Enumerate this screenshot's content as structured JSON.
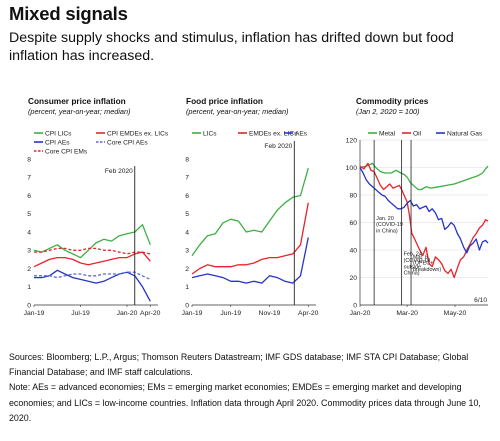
{
  "title": "Mixed signals",
  "subtitle": "Despite supply shocks and stimulus, inflation has drifted down but food inflation has increased.",
  "footer": {
    "sources": "Sources: Bloomberg; L.P., Argus; Thomson Reuters Datastream; IMF GDS database; IMF STA CPI Database; Global Financial Database; and IMF staff calculations.",
    "note": "Note: AEs = advanced economies; EMs = emerging market economies; EMDEs = emerging market and developing economies; and LICs = low-income countries. Inflation data through April 2020. Commodity prices data through June 10, 2020."
  },
  "chart_data": [
    {
      "type": "line",
      "title": "Consumer price inflation",
      "subtitle": "(percent, year-on-year; median)",
      "ylim": [
        0,
        8
      ],
      "yticks": [
        "0",
        "1",
        "2",
        "3",
        "4",
        "5",
        "6",
        "7",
        "8"
      ],
      "xlim": [
        0,
        16
      ],
      "xticks": [
        {
          "x": 0,
          "label": "Jan-19"
        },
        {
          "x": 6,
          "label": "Jul-19"
        },
        {
          "x": 12,
          "label": "Jan-20"
        },
        {
          "x": 15,
          "label": "Apr-20"
        }
      ],
      "vline": {
        "x": 13,
        "label": "Feb 2020"
      },
      "legend": [
        {
          "name": "CPI LICs",
          "color": "#3cb043",
          "dash": false
        },
        {
          "name": "CPI EMDEs ex. LICs",
          "color": "#e8232a",
          "dash": false
        },
        {
          "name": "CPI AEs",
          "color": "#2534c8",
          "dash": false
        },
        {
          "name": "Core CPI AEs",
          "color": "#5a6ad8",
          "dash": true
        },
        {
          "name": "Core CPI EMs",
          "color": "#e8232a",
          "dash": true
        }
      ],
      "series": [
        {
          "name": "CPI LICs",
          "color": "#3cb043",
          "dash": false,
          "x": [
            0,
            1,
            2,
            3,
            4,
            5,
            6,
            7,
            8,
            9,
            10,
            11,
            12,
            13,
            14,
            15
          ],
          "values": [
            3.0,
            2.9,
            3.1,
            3.3,
            3.0,
            2.8,
            2.6,
            3.0,
            3.4,
            3.6,
            3.5,
            3.8,
            3.9,
            4.0,
            4.4,
            3.3
          ]
        },
        {
          "name": "CPI EMDEs ex. LICs",
          "color": "#e8232a",
          "dash": false,
          "x": [
            0,
            1,
            2,
            3,
            4,
            5,
            6,
            7,
            8,
            9,
            10,
            11,
            12,
            13,
            14,
            15
          ],
          "values": [
            2.1,
            2.3,
            2.5,
            2.6,
            2.6,
            2.5,
            2.3,
            2.2,
            2.3,
            2.4,
            2.5,
            2.6,
            2.6,
            2.8,
            2.9,
            2.4
          ]
        },
        {
          "name": "CPI AEs",
          "color": "#2534c8",
          "dash": false,
          "x": [
            0,
            1,
            2,
            3,
            4,
            5,
            6,
            7,
            8,
            9,
            10,
            11,
            12,
            13,
            14,
            15
          ],
          "values": [
            1.5,
            1.5,
            1.6,
            1.9,
            1.7,
            1.5,
            1.4,
            1.3,
            1.2,
            1.3,
            1.5,
            1.7,
            1.8,
            1.6,
            1.0,
            0.2
          ]
        },
        {
          "name": "Core CPI AEs",
          "color": "#5a6ad8",
          "dash": true,
          "x": [
            0,
            1,
            2,
            3,
            4,
            5,
            6,
            7,
            8,
            9,
            10,
            11,
            12,
            13,
            14,
            15
          ],
          "values": [
            1.6,
            1.6,
            1.6,
            1.5,
            1.6,
            1.7,
            1.7,
            1.6,
            1.6,
            1.7,
            1.7,
            1.7,
            1.8,
            1.8,
            1.6,
            1.4
          ]
        },
        {
          "name": "Core CPI EMs",
          "color": "#e8232a",
          "dash": true,
          "x": [
            0,
            1,
            2,
            3,
            4,
            5,
            6,
            7,
            8,
            9,
            10,
            11,
            12,
            13,
            14,
            15
          ],
          "values": [
            2.9,
            2.9,
            3.0,
            3.1,
            3.1,
            3.0,
            3.0,
            3.1,
            3.1,
            3.0,
            3.0,
            2.9,
            2.8,
            2.9,
            2.9,
            2.8
          ]
        }
      ]
    },
    {
      "type": "line",
      "title": "Food price inflation",
      "subtitle": "(percent, year-on-year; median)",
      "ylim": [
        0,
        8
      ],
      "yticks": [
        "0",
        "1",
        "2",
        "3",
        "4",
        "5",
        "6",
        "7",
        "8"
      ],
      "xlim": [
        0,
        16
      ],
      "xticks": [
        {
          "x": 0,
          "label": "Jan-19"
        },
        {
          "x": 5,
          "label": "Jun-19"
        },
        {
          "x": 10,
          "label": "Nov-19"
        },
        {
          "x": 15,
          "label": "Apr-20"
        }
      ],
      "vline": {
        "x": 13.2,
        "label": "Feb 2020"
      },
      "legend": [
        {
          "name": "LICs",
          "color": "#3cb043",
          "dash": false
        },
        {
          "name": "EMDEs ex. LICs",
          "color": "#e8232a",
          "dash": false
        },
        {
          "name": "AEs",
          "color": "#2534c8",
          "dash": false
        }
      ],
      "series": [
        {
          "name": "LICs",
          "color": "#3cb043",
          "dash": false,
          "x": [
            0,
            1,
            2,
            3,
            4,
            5,
            6,
            7,
            8,
            9,
            10,
            11,
            12,
            13,
            14,
            15
          ],
          "values": [
            2.7,
            3.3,
            3.8,
            3.9,
            4.5,
            4.7,
            4.6,
            4.0,
            4.1,
            4.0,
            4.6,
            5.2,
            5.6,
            5.9,
            6.0,
            7.5
          ]
        },
        {
          "name": "EMDEs ex. LICs",
          "color": "#e8232a",
          "dash": false,
          "x": [
            0,
            1,
            2,
            3,
            4,
            5,
            6,
            7,
            8,
            9,
            10,
            11,
            12,
            13,
            14,
            15
          ],
          "values": [
            1.7,
            2.0,
            2.2,
            2.1,
            2.1,
            2.1,
            2.2,
            2.2,
            2.3,
            2.5,
            2.6,
            2.6,
            2.7,
            2.8,
            3.3,
            5.6
          ]
        },
        {
          "name": "AEs",
          "color": "#2534c8",
          "dash": false,
          "x": [
            0,
            1,
            2,
            3,
            4,
            5,
            6,
            7,
            8,
            9,
            10,
            11,
            12,
            13,
            14,
            15
          ],
          "values": [
            1.5,
            1.6,
            1.7,
            1.6,
            1.5,
            1.3,
            1.3,
            1.2,
            1.3,
            1.2,
            1.6,
            1.5,
            1.3,
            1.2,
            1.6,
            3.7
          ]
        }
      ]
    },
    {
      "type": "line",
      "title": "Commodity prices",
      "subtitle": "(Jan 2, 2020 = 100)",
      "ylim": [
        0,
        120
      ],
      "yticks": [
        "0",
        "20",
        "40",
        "60",
        "80",
        "100",
        "120"
      ],
      "xlim": [
        0,
        163
      ],
      "xticks": [
        {
          "x": 0,
          "label": "Jan-20"
        },
        {
          "x": 60,
          "label": "Mar-20"
        },
        {
          "x": 121,
          "label": "May-20"
        }
      ],
      "corner_label": "6/10",
      "vlines": [
        {
          "x": 18,
          "label": "Jan. 20 (COVID-19 in China)",
          "label_y": 62
        },
        {
          "x": 53,
          "label": "Feb. 24 (COVID-19 outside China)",
          "label_y": 36
        },
        {
          "x": 65,
          "label": "Mar. 6 (OPEC+ breakdown)",
          "label_y": 34
        }
      ],
      "legend": [
        {
          "name": "Metal",
          "color": "#3cb043",
          "dash": false
        },
        {
          "name": "Oil",
          "color": "#e8232a",
          "dash": false
        },
        {
          "name": "Natural Gas",
          "color": "#2534c8",
          "dash": false
        }
      ],
      "series": [
        {
          "name": "Metal",
          "color": "#3cb043",
          "dash": false,
          "x": [
            0,
            8,
            16,
            20,
            26,
            32,
            40,
            46,
            52,
            56,
            60,
            64,
            70,
            74,
            78,
            84,
            90,
            100,
            110,
            120,
            130,
            140,
            150,
            156,
            160,
            163
          ],
          "values": [
            100,
            101,
            103,
            100,
            97,
            96,
            96,
            98,
            96,
            95,
            93,
            89,
            86,
            84,
            84,
            86,
            85,
            86,
            87,
            88,
            90,
            92,
            94,
            96,
            99,
            101
          ]
        },
        {
          "name": "Oil",
          "color": "#e8232a",
          "dash": false,
          "x": [
            0,
            5,
            10,
            14,
            18,
            22,
            26,
            30,
            34,
            38,
            42,
            46,
            50,
            53,
            56,
            60,
            63,
            66,
            68,
            72,
            76,
            80,
            84,
            88,
            92,
            96,
            100,
            104,
            108,
            112,
            116,
            120,
            124,
            128,
            132,
            136,
            140,
            144,
            148,
            152,
            156,
            160,
            163
          ],
          "values": [
            101,
            99,
            103,
            98,
            97,
            92,
            87,
            84,
            86,
            88,
            85,
            86,
            87,
            84,
            80,
            75,
            65,
            52,
            50,
            45,
            40,
            36,
            42,
            30,
            28,
            35,
            33,
            30,
            25,
            23,
            26,
            20,
            27,
            33,
            35,
            40,
            44,
            49,
            52,
            56,
            58,
            62,
            61
          ]
        },
        {
          "name": "Natural Gas",
          "color": "#2534c8",
          "dash": false,
          "x": [
            0,
            4,
            8,
            12,
            16,
            20,
            24,
            28,
            32,
            36,
            40,
            44,
            48,
            52,
            56,
            60,
            64,
            68,
            72,
            76,
            80,
            84,
            88,
            92,
            96,
            100,
            104,
            108,
            112,
            116,
            120,
            124,
            128,
            132,
            136,
            140,
            144,
            148,
            152,
            156,
            160,
            163
          ],
          "values": [
            100,
            96,
            91,
            88,
            86,
            84,
            82,
            80,
            79,
            76,
            74,
            72,
            70,
            70,
            71,
            74,
            76,
            72,
            73,
            70,
            71,
            72,
            68,
            70,
            67,
            62,
            63,
            55,
            57,
            60,
            58,
            52,
            48,
            42,
            38,
            43,
            45,
            48,
            40,
            46,
            47,
            45
          ]
        }
      ]
    }
  ]
}
